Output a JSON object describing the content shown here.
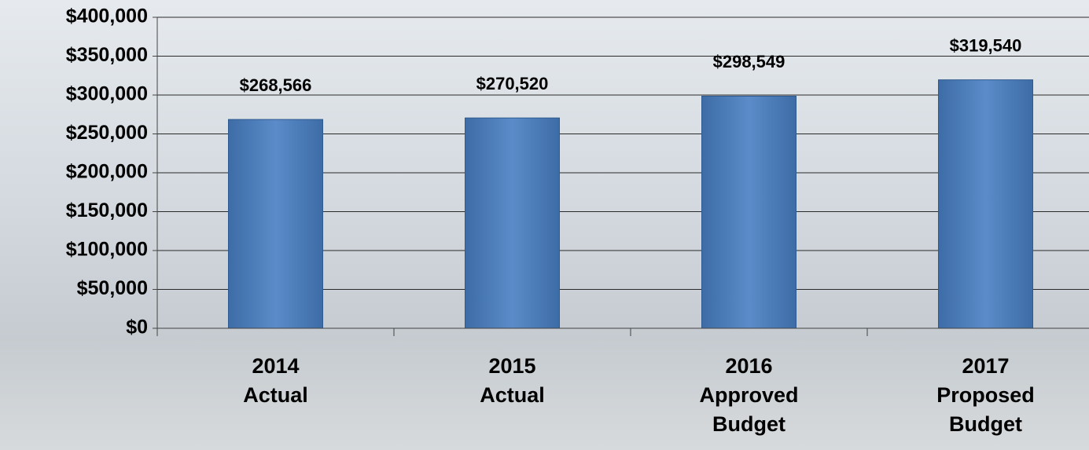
{
  "chart_data": {
    "type": "bar",
    "categories": [
      "2014 Actual",
      "2015 Actual",
      "2016 Approved Budget",
      "2017 Proposed Budget"
    ],
    "values": [
      268566,
      270520,
      298549,
      319540
    ],
    "value_labels": [
      "$268,566",
      "$270,520",
      "$298,549",
      "$319,540"
    ],
    "color": "#4f81bd",
    "ylim": [
      0,
      400000
    ],
    "yticks": [
      {
        "value": 0,
        "label": "$0"
      },
      {
        "value": 50000,
        "label": "$50,000"
      },
      {
        "value": 100000,
        "label": "$100,000"
      },
      {
        "value": 150000,
        "label": "$150,000"
      },
      {
        "value": 200000,
        "label": "$200,000"
      },
      {
        "value": 250000,
        "label": "$250,000"
      },
      {
        "value": 300000,
        "label": "$300,000"
      },
      {
        "value": 350000,
        "label": "$350,000"
      },
      {
        "value": 400000,
        "label": "$400,000"
      }
    ],
    "grid": true
  }
}
